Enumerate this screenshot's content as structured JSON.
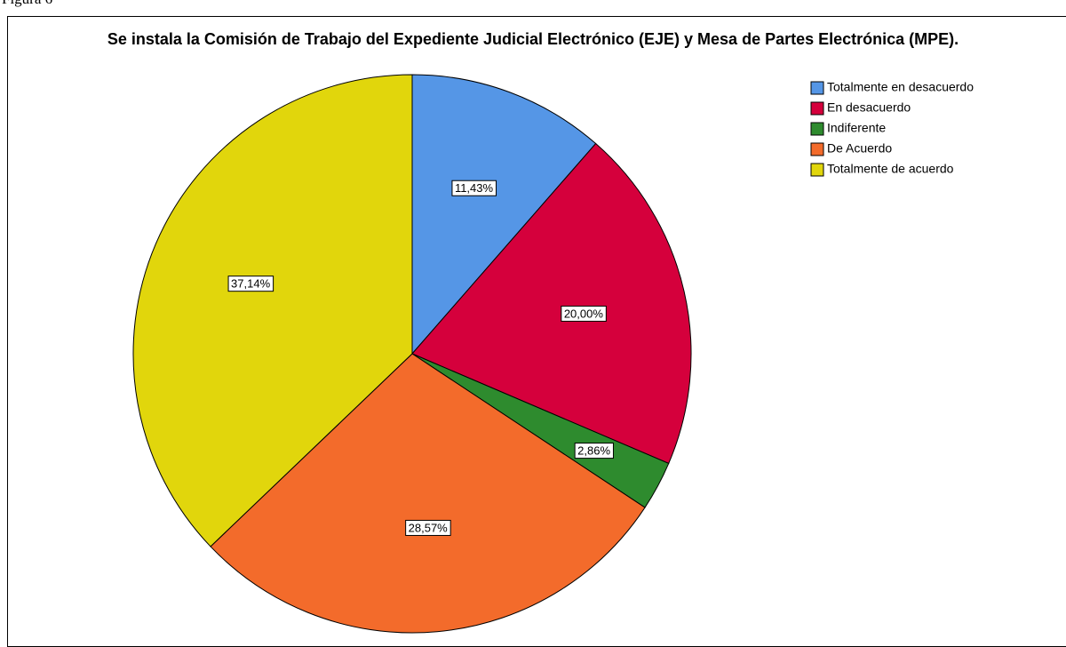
{
  "caption": "Figura 6",
  "chart_data": {
    "type": "pie",
    "title": "Se instala la Comisión de Trabajo del Expediente Judicial Electrónico (EJE) y Mesa de Partes Electrónica (MPE).",
    "categories": [
      "Totalmente en desacuerdo",
      "En desacuerdo",
      "Indiferente",
      "De Acuerdo",
      "Totalmente de acuerdo"
    ],
    "values": [
      11.43,
      20.0,
      2.86,
      28.57,
      37.14
    ],
    "value_labels": [
      "11,43%",
      "20,00%",
      "2,86%",
      "28,57%",
      "37,14%"
    ],
    "colors": [
      "#5596e6",
      "#d5003c",
      "#2e8b2e",
      "#f36b2b",
      "#e1d60c"
    ],
    "legend": "top-right"
  }
}
